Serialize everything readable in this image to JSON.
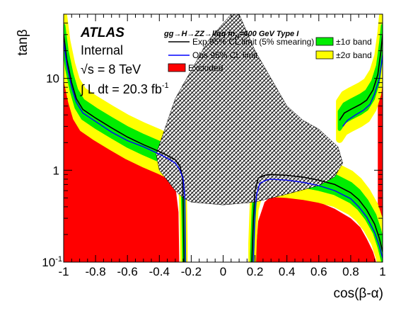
{
  "chart_data": {
    "type": "area",
    "experiment": "ATLAS",
    "status": "Internal",
    "energy_label": "√s = 8 TeV",
    "lumi_label": "∫ L dt = 20.3 fb",
    "lumi_superscript": "-1",
    "process_label": "gg→H→ZZ→llqq m",
    "process_subscript": "H",
    "process_suffix": "=400 GeV Type I",
    "xlabel": "cos(β-α)",
    "ylabel": "tanβ",
    "xlim": [
      -1,
      1
    ],
    "ylim": [
      0.1,
      50
    ],
    "yscale": "log",
    "x_ticks": [
      "-1",
      "-0.8",
      "-0.6",
      "-0.4",
      "-0.2",
      "0",
      "0.2",
      "0.4",
      "0.6",
      "0.8",
      "1"
    ],
    "x_tick_values": [
      -1,
      -0.8,
      -0.6,
      -0.4,
      -0.2,
      0,
      0.2,
      0.4,
      0.6,
      0.8,
      1
    ],
    "y_tick_values": [
      0.1,
      1,
      10
    ],
    "y_ticks": [
      {
        "value": 0.1,
        "base": "10",
        "exp": "-1"
      },
      {
        "value": 1,
        "base": "1",
        "exp": ""
      },
      {
        "value": 10,
        "base": "10",
        "exp": ""
      }
    ],
    "legend": [
      {
        "label": "Exp 95% CL limit (5% smearing)",
        "style": "line",
        "color": "#000000"
      },
      {
        "label": "±1σ band",
        "style": "box",
        "color": "#00ee00"
      },
      {
        "label": "Obs 95% CL limit",
        "style": "line",
        "color": "#0000ff"
      },
      {
        "label": "±2σ band",
        "style": "box",
        "color": "#ffff00"
      },
      {
        "label": "Excluded",
        "style": "box",
        "color": "#ff0000"
      }
    ],
    "colors": {
      "excluded": "#ff0000",
      "band_2sigma": "#ffff00",
      "band_1sigma": "#00ee00",
      "expected": "#000000",
      "observed": "#0000ff",
      "hatch": "#000000"
    },
    "series": [
      {
        "name": "Exp 95% CL limit (5% smearing)",
        "segments": [
          [
            [
              -1,
              30
            ],
            [
              -0.98,
              16
            ],
            [
              -0.95,
              9
            ],
            [
              -0.92,
              6
            ],
            [
              -0.88,
              4.6
            ],
            [
              -0.8,
              3.7
            ],
            [
              -0.7,
              2.9
            ],
            [
              -0.6,
              2.3
            ],
            [
              -0.5,
              1.9
            ],
            [
              -0.4,
              1.6
            ],
            [
              -0.35,
              1.45
            ],
            [
              -0.3,
              1.3
            ],
            [
              -0.27,
              1.1
            ],
            [
              -0.255,
              0.85
            ],
            [
              -0.25,
              0.4
            ],
            [
              -0.245,
              0.1
            ]
          ],
          [
            [
              0.18,
              0.1
            ],
            [
              0.19,
              0.3
            ],
            [
              0.2,
              0.6
            ],
            [
              0.22,
              0.82
            ],
            [
              0.26,
              0.88
            ],
            [
              0.3,
              0.9
            ],
            [
              0.4,
              0.88
            ],
            [
              0.5,
              0.84
            ],
            [
              0.6,
              0.78
            ],
            [
              0.7,
              0.7
            ],
            [
              0.8,
              0.57
            ],
            [
              0.85,
              0.48
            ],
            [
              0.9,
              0.37
            ],
            [
              0.95,
              0.26
            ],
            [
              0.98,
              0.18
            ],
            [
              1,
              0.13
            ]
          ],
          [
            [
              0.73,
              3.5
            ],
            [
              0.76,
              4.2
            ],
            [
              0.8,
              4.6
            ],
            [
              0.86,
              5.2
            ],
            [
              0.9,
              5.8
            ],
            [
              0.94,
              7.5
            ],
            [
              0.97,
              11
            ],
            [
              0.99,
              20
            ],
            [
              1,
              30
            ]
          ]
        ]
      },
      {
        "name": "Obs 95% CL limit",
        "segments": [
          [
            [
              -1,
              25
            ],
            [
              -0.98,
              14
            ],
            [
              -0.95,
              8
            ],
            [
              -0.92,
              5.5
            ],
            [
              -0.88,
              4.2
            ],
            [
              -0.8,
              3.4
            ],
            [
              -0.7,
              2.6
            ],
            [
              -0.6,
              2.1
            ],
            [
              -0.5,
              1.8
            ],
            [
              -0.4,
              1.5
            ],
            [
              -0.35,
              1.35
            ],
            [
              -0.3,
              1.2
            ],
            [
              -0.27,
              1.0
            ],
            [
              -0.25,
              0.8
            ],
            [
              -0.24,
              0.5
            ],
            [
              -0.235,
              0.1
            ]
          ],
          [
            [
              0.19,
              0.1
            ],
            [
              0.2,
              0.35
            ],
            [
              0.21,
              0.55
            ],
            [
              0.23,
              0.72
            ],
            [
              0.27,
              0.78
            ],
            [
              0.3,
              0.8
            ],
            [
              0.4,
              0.78
            ],
            [
              0.5,
              0.74
            ],
            [
              0.6,
              0.68
            ],
            [
              0.7,
              0.6
            ],
            [
              0.8,
              0.49
            ],
            [
              0.85,
              0.4
            ],
            [
              0.9,
              0.31
            ],
            [
              0.95,
              0.21
            ],
            [
              0.98,
              0.15
            ],
            [
              1,
              0.11
            ]
          ],
          [
            [
              0.75,
              3.0
            ],
            [
              0.78,
              3.5
            ],
            [
              0.83,
              4.0
            ],
            [
              0.88,
              4.5
            ],
            [
              0.92,
              5.2
            ],
            [
              0.95,
              6.8
            ],
            [
              0.98,
              10
            ],
            [
              1,
              18
            ]
          ]
        ]
      }
    ],
    "excluded_regions": [
      [
        [
          -1,
          0.1
        ],
        [
          -1,
          12
        ],
        [
          -0.96,
          7
        ],
        [
          -0.92,
          4.6
        ],
        [
          -0.86,
          3.3
        ],
        [
          -0.8,
          2.7
        ],
        [
          -0.7,
          2.0
        ],
        [
          -0.6,
          1.6
        ],
        [
          -0.5,
          1.3
        ],
        [
          -0.4,
          1.05
        ],
        [
          -0.34,
          0.9
        ],
        [
          -0.3,
          0.7
        ],
        [
          -0.28,
          0.35
        ],
        [
          -0.275,
          0.1
        ]
      ],
      [
        [
          0.2,
          0.1
        ],
        [
          0.22,
          0.28
        ],
        [
          0.26,
          0.45
        ],
        [
          0.3,
          0.52
        ],
        [
          0.4,
          0.52
        ],
        [
          0.5,
          0.5
        ],
        [
          0.6,
          0.45
        ],
        [
          0.7,
          0.38
        ],
        [
          0.8,
          0.3
        ],
        [
          0.86,
          0.24
        ],
        [
          0.9,
          0.18
        ],
        [
          0.94,
          0.13
        ],
        [
          0.96,
          0.1
        ]
      ],
      [
        [
          0.97,
          0.1
        ],
        [
          0.97,
          5
        ],
        [
          0.99,
          8
        ],
        [
          1,
          9
        ],
        [
          1,
          0.1
        ]
      ]
    ],
    "hatched_region": [
      [
        -0.4,
        1.0
      ],
      [
        -0.3,
        0.6
      ],
      [
        -0.25,
        0.5
      ],
      [
        -0.2,
        0.45
      ],
      [
        0,
        0.42
      ],
      [
        0.2,
        0.45
      ],
      [
        0.4,
        0.55
      ],
      [
        0.6,
        0.68
      ],
      [
        0.7,
        0.85
      ],
      [
        0.75,
        1.2
      ],
      [
        0.72,
        1.8
      ],
      [
        0.6,
        2.8
      ],
      [
        0.5,
        3.5
      ],
      [
        0.4,
        5
      ],
      [
        0.3,
        10
      ],
      [
        0.2,
        20
      ],
      [
        0.1,
        50
      ],
      [
        0.05,
        50
      ],
      [
        -0.1,
        25
      ],
      [
        -0.3,
        6
      ],
      [
        -0.42,
        1.5
      ]
    ]
  }
}
